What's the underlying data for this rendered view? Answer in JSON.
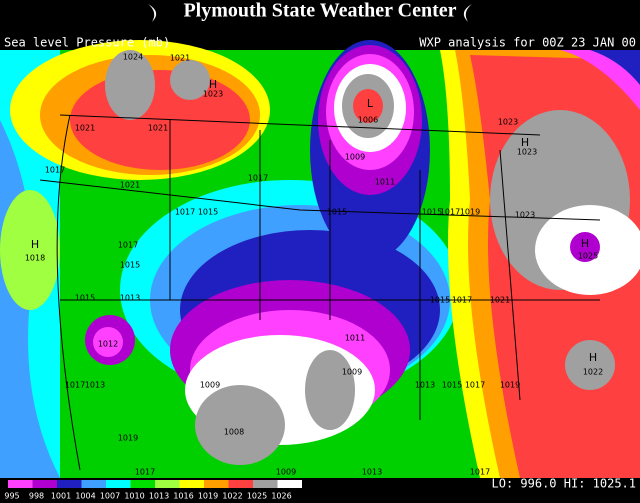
{
  "header": {
    "title": "Plymouth State Weather Center",
    "field": "Sea level Pressure (mb)",
    "analysis": "WXP analysis for 00Z 23 JAN 00"
  },
  "map_labels": [
    "1024",
    "1021",
    "H",
    "1023",
    "1021",
    "1021",
    "1017",
    "1021",
    "1017",
    "1017",
    "1015",
    "H",
    "1018",
    "1017",
    "1015",
    "1015",
    "1013",
    "L",
    "1006",
    "1009",
    "1011",
    "1015",
    "1015",
    "1017",
    "1019",
    "1023",
    "H",
    "1023",
    "1023",
    "H",
    "1025",
    "1015",
    "1017",
    "1021",
    "1012",
    "1011",
    "1009",
    "1009",
    "1008",
    "H",
    "1022",
    "1017",
    "1013",
    "1009",
    "1017",
    "1013",
    "1019",
    "1017",
    "1013",
    "1015",
    "1017",
    "1019"
  ],
  "legend": {
    "labels": [
      "995",
      "998",
      "1001",
      "1004",
      "1007",
      "1010",
      "1013",
      "1016",
      "1019",
      "1022",
      "1025",
      "1026"
    ],
    "colors": [
      "#ff40ff",
      "#b000d0",
      "#2020c0",
      "#40a0ff",
      "#00ffff",
      "#00e000",
      "#a0ff40",
      "#ffff00",
      "#ffa000",
      "#ff4040",
      "#a0a0a0",
      "#ffffff"
    ]
  },
  "stats": "LO: 996.0  HI: 1025.1"
}
